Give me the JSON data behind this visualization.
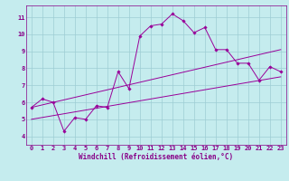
{
  "xlabel": "Windchill (Refroidissement éolien,°C)",
  "bg_color": "#c5ecee",
  "grid_color": "#9dcdd4",
  "line_color": "#990099",
  "xlim": [
    -0.5,
    23.5
  ],
  "ylim": [
    3.5,
    11.7
  ],
  "xticks": [
    0,
    1,
    2,
    3,
    4,
    5,
    6,
    7,
    8,
    9,
    10,
    11,
    12,
    13,
    14,
    15,
    16,
    17,
    18,
    19,
    20,
    21,
    22,
    23
  ],
  "yticks": [
    4,
    5,
    6,
    7,
    8,
    9,
    10,
    11
  ],
  "line1_x": [
    0,
    1,
    2,
    3,
    4,
    5,
    6,
    7,
    8,
    9,
    10,
    11,
    12,
    13,
    14,
    15,
    16,
    17,
    18,
    19,
    20,
    21,
    22,
    23
  ],
  "line1_y": [
    5.7,
    6.2,
    6.0,
    4.3,
    5.1,
    5.0,
    5.8,
    5.7,
    7.8,
    6.8,
    9.9,
    10.5,
    10.6,
    11.2,
    10.8,
    10.1,
    10.4,
    9.1,
    9.1,
    8.3,
    8.3,
    7.3,
    8.1,
    7.8
  ],
  "line2_x": [
    0,
    23
  ],
  "line2_y": [
    5.0,
    7.5
  ],
  "line3_x": [
    0,
    23
  ],
  "line3_y": [
    5.7,
    9.1
  ],
  "tick_fontsize": 5.0,
  "xlabel_fontsize": 5.5,
  "label_color": "#880088"
}
